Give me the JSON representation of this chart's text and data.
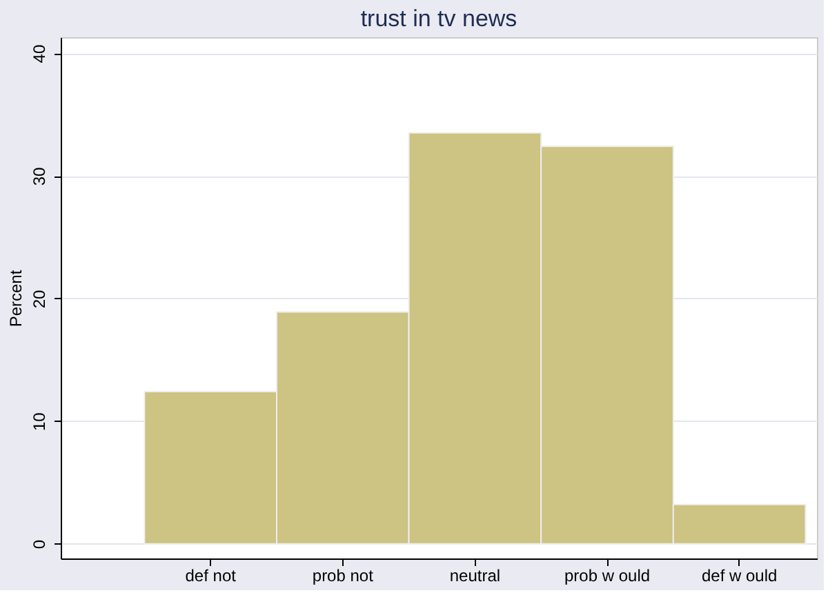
{
  "chart_data": {
    "type": "bar",
    "title": "trust in tv news",
    "ylabel": "Percent",
    "categories": [
      "def not",
      "prob not",
      "neutral",
      "prob w ould",
      "def w ould"
    ],
    "values": [
      12.4,
      18.9,
      33.5,
      32.4,
      3.2
    ],
    "color": "#cdc382",
    "ylim": [
      -1.2,
      41.3
    ],
    "yticks": [
      0,
      10,
      20,
      30,
      40
    ],
    "grid": "y"
  }
}
